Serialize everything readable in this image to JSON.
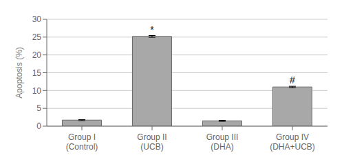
{
  "chart_data": {
    "type": "bar",
    "categories": [
      "Group I\n(Control)",
      "Group II\n(UCB)",
      "Group III\n(DHA)",
      "Group IV\n(DHA+UCB)"
    ],
    "values": [
      1.7,
      25.2,
      1.5,
      11.0
    ],
    "errors": [
      0.15,
      0.25,
      0.15,
      0.2
    ],
    "color": "#a8a8a8",
    "ylabel": "Apoptosis (%)",
    "ylim": [
      0,
      30
    ],
    "yticks": [
      0,
      5,
      10,
      15,
      20,
      25,
      30
    ],
    "annotations": [
      {
        "text": "*",
        "bar_index": 1
      },
      {
        "text": "#",
        "bar_index": 3
      }
    ],
    "grid": true
  }
}
